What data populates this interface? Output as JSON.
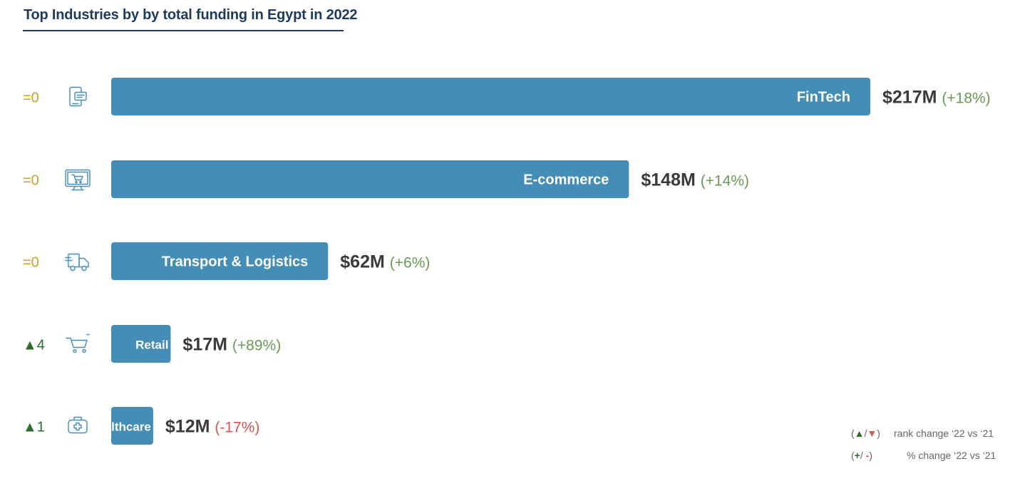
{
  "title": "Top Industries by by total funding in Egypt in 2022",
  "colors": {
    "bar": "#448db6",
    "rank_same": "#c9a227",
    "rank_up": "#2f6b2a",
    "pct_up": "#6a9a55",
    "pct_down": "#d9534f",
    "icon": "#448db6"
  },
  "chart_data": {
    "type": "bar",
    "orientation": "horizontal",
    "title": "Top Industries by by total funding in Egypt in 2022",
    "unit": "$M",
    "categories": [
      "FinTech",
      "E-commerce",
      "Transport & Logistics",
      "Retail",
      "Healthcare"
    ],
    "values": [
      217,
      148,
      62,
      17,
      12
    ],
    "value_labels": [
      "$217M",
      "$148M",
      "$62M",
      "$17M",
      "$12M"
    ],
    "pct_change_labels": [
      "(+18%)",
      "(+14%)",
      "(+6%)",
      "(+89%)",
      "(-17%)"
    ],
    "pct_change": [
      18,
      14,
      6,
      89,
      -17
    ],
    "rank_change_labels": [
      "=0",
      "=0",
      "=0",
      "▲4",
      "▲1"
    ],
    "rank_change": [
      0,
      0,
      0,
      4,
      1
    ],
    "icons": [
      "mobile-payment-icon",
      "ecommerce-monitor-icon",
      "delivery-truck-icon",
      "shopping-cart-icon",
      "medical-kit-icon"
    ]
  },
  "legend": {
    "rank_symbols": "(▲/▼)",
    "rank_text": "rank change ‘22 vs ‘21",
    "pct_symbols": "(+/ -)",
    "pct_text": "% change ‘22 vs ‘21"
  }
}
